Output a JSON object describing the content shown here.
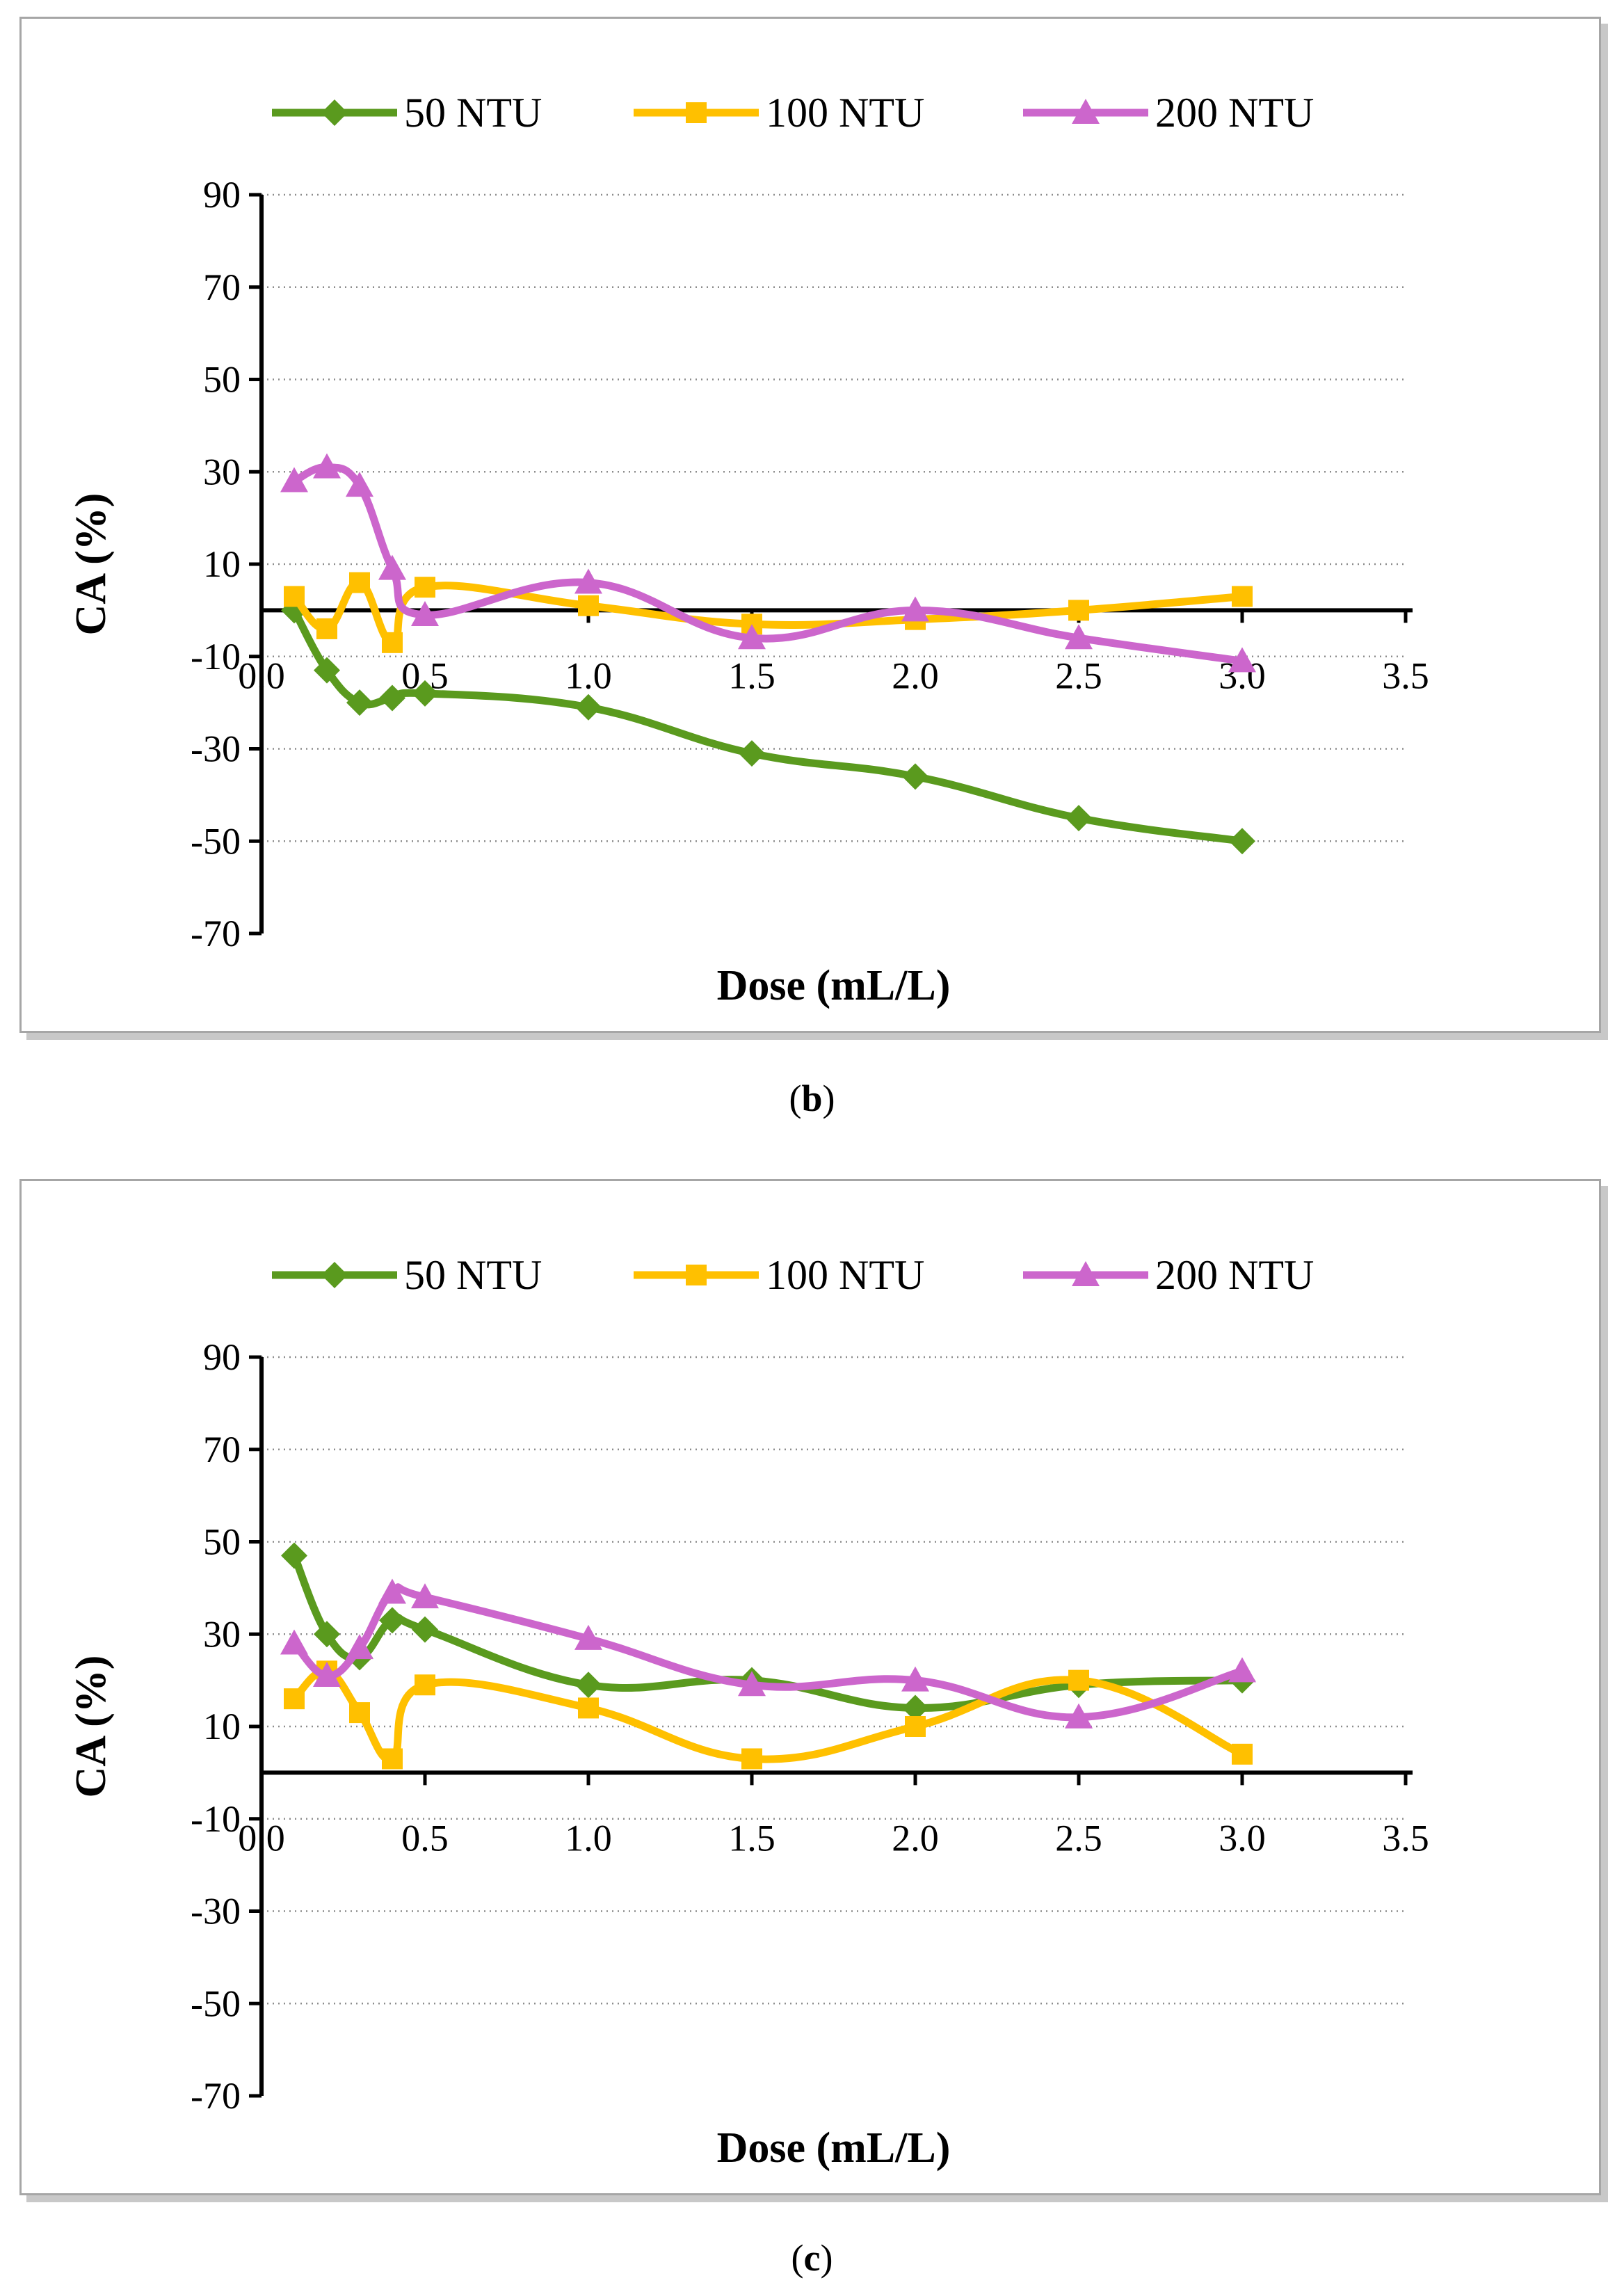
{
  "figure": {
    "caption_b": {
      "open": "(",
      "letter": "b",
      "close": ")"
    },
    "caption_c": {
      "open": "(",
      "letter": "c",
      "close": ")"
    }
  },
  "colors": {
    "50 NTU": "#5a9a1e",
    "100 NTU": "#ffc000",
    "200 NTU": "#cc66cc",
    "axis": "#000000",
    "grid": "#8c8c8c"
  },
  "chart_data": [
    {
      "id": "b",
      "type": "line",
      "smooth": true,
      "xlabel": "Dose (mL/L)",
      "ylabel": "CA (%)",
      "xlim": [
        0,
        3.5
      ],
      "ylim": [
        -70,
        90
      ],
      "x_ticks": [
        "0.0",
        "0.5",
        "1.0",
        "1.5",
        "2.0",
        "2.5",
        "3.0",
        "3.5"
      ],
      "y_ticks": [
        "90",
        "70",
        "50",
        "30",
        "10",
        "-10",
        "-30",
        "-50",
        "-70"
      ],
      "x": [
        0.1,
        0.2,
        0.3,
        0.4,
        0.5,
        1.0,
        1.5,
        2.0,
        2.5,
        3.0
      ],
      "grid": "dotted horizontal",
      "legend": "top",
      "series": [
        {
          "name": "50 NTU",
          "marker": "diamond",
          "values": [
            0,
            -13,
            -20,
            -19,
            -18,
            -21,
            -31,
            -36,
            -45,
            -50
          ]
        },
        {
          "name": "100 NTU",
          "marker": "square",
          "values": [
            3,
            -4,
            6,
            -7,
            5,
            1,
            -3,
            -2,
            0,
            3
          ]
        },
        {
          "name": "200 NTU",
          "marker": "triangle",
          "values": [
            28,
            31,
            27,
            9,
            -1,
            6,
            -6,
            0,
            -6,
            -11
          ]
        }
      ]
    },
    {
      "id": "c",
      "type": "line",
      "smooth": true,
      "xlabel": "Dose (mL/L)",
      "ylabel": "CA (%)",
      "xlim": [
        0,
        3.5
      ],
      "ylim": [
        -70,
        90
      ],
      "x_ticks": [
        "0.0",
        "0.5",
        "1.0",
        "1.5",
        "2.0",
        "2.5",
        "3.0",
        "3.5"
      ],
      "y_ticks": [
        "90",
        "70",
        "50",
        "30",
        "10",
        "-10",
        "-30",
        "-50",
        "-70"
      ],
      "x": [
        0.1,
        0.2,
        0.3,
        0.4,
        0.5,
        1.0,
        1.5,
        2.0,
        2.5,
        3.0
      ],
      "grid": "dotted horizontal",
      "legend": "top",
      "series": [
        {
          "name": "50 NTU",
          "marker": "diamond",
          "values": [
            47,
            30,
            25,
            33,
            31,
            19,
            20,
            14,
            19,
            20
          ]
        },
        {
          "name": "100 NTU",
          "marker": "square",
          "values": [
            16,
            22,
            13,
            3,
            19,
            14,
            3,
            10,
            20,
            4
          ]
        },
        {
          "name": "200 NTU",
          "marker": "triangle",
          "values": [
            28,
            21,
            27,
            39,
            38,
            29,
            19,
            20,
            12,
            22
          ]
        }
      ]
    }
  ]
}
